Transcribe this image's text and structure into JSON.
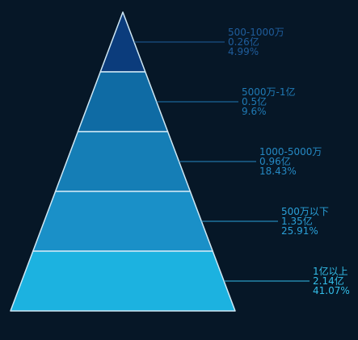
{
  "chart_data": {
    "type": "pyramid",
    "title": "",
    "segments": [
      {
        "category": "500-1000万",
        "value": 0.26,
        "value_text": "0.26亿",
        "percent_text": "4.99%",
        "color": "#0b3c7c",
        "label_color": "#1f5d9c"
      },
      {
        "category": "5000万-1亿",
        "value": 0.5,
        "value_text": "0.5亿",
        "percent_text": "9.6%",
        "color": "#0f6ba4",
        "label_color": "#1f7ab5"
      },
      {
        "category": "1000-5000万",
        "value": 0.96,
        "value_text": "0.96亿",
        "percent_text": "18.43%",
        "color": "#157eb6",
        "label_color": "#2589c4"
      },
      {
        "category": "500万以下",
        "value": 1.35,
        "value_text": "1.35亿",
        "percent_text": "25.91%",
        "color": "#1a90c8",
        "label_color": "#2aa0d8"
      },
      {
        "category": "1亿以上",
        "value": 2.14,
        "value_text": "2.14亿",
        "percent_text": "41.07%",
        "color": "#1cb2e0",
        "label_color": "#33bde8"
      }
    ],
    "border_color": "#cfe8f5"
  }
}
